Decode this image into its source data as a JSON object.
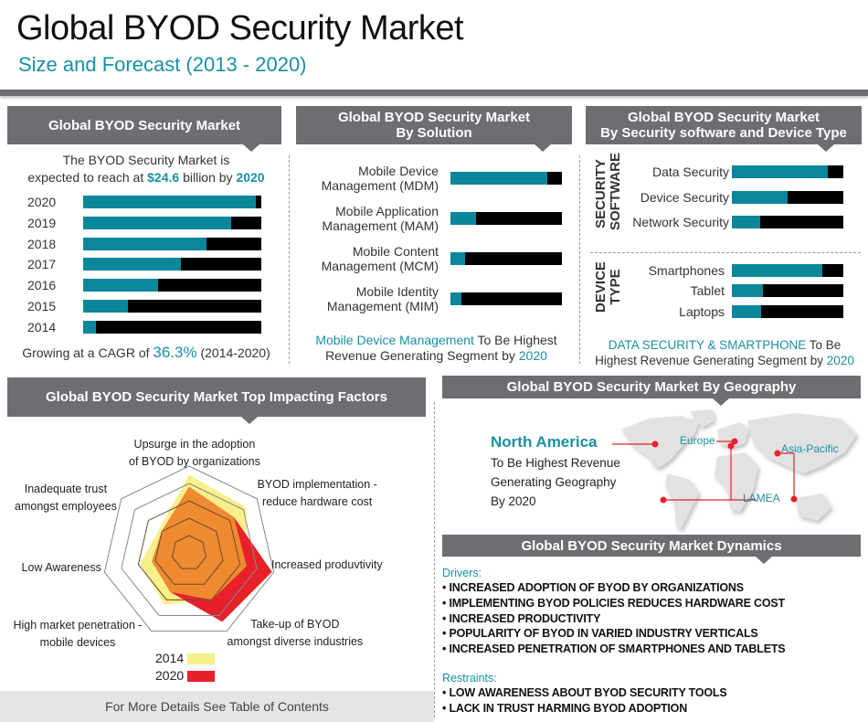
{
  "header": {
    "title": "Global BYOD Security Market",
    "subtitle": "Size and Forecast (2013 - 2020)"
  },
  "colors": {
    "teal": "#0b879c",
    "accent_text": "#1a8fa3",
    "header_bg": "#6d6e71",
    "series_2014": "#f7ef8a",
    "series_2020": "#e8202a",
    "overlap": "#f08a30"
  },
  "panel_market": {
    "title": "Global BYOD Security Market",
    "intro_line1": "The BYOD Security Market is",
    "intro_pre": "expected to reach at ",
    "intro_value": "$24.6",
    "intro_mid": " billion by ",
    "intro_year": "2020",
    "cagr_pre": "Growing at a CAGR of ",
    "cagr_value": "36.3%",
    "cagr_post": " (2014-2020)"
  },
  "panel_solution": {
    "title_line1": "Global BYOD Security Market",
    "title_line2": "By  Solution",
    "note_highlight": "Mobile Device Management",
    "note_mid": " To Be Highest",
    "note_line2": "Revenue Generating Segment by ",
    "note_year": "2020"
  },
  "panel_software": {
    "title_line1": "Global BYOD Security Market",
    "title_line2": "By Security software and Device Type",
    "group1_label_a": "SECURITY",
    "group1_label_b": "SOFTWARE",
    "group2_label_a": "DEVICE",
    "group2_label_b": "TYPE",
    "note_highlight": "DATA SECURITY  & SMARTPHONE",
    "note_mid": " To Be",
    "note_line2": "Highest Revenue Generating Segment by ",
    "note_year": "2020"
  },
  "panel_factors": {
    "title": "Global BYOD Security Market  Top Impacting Factors",
    "legend": [
      {
        "label": "2014"
      },
      {
        "label": "2020"
      }
    ]
  },
  "panel_geo": {
    "title": "Global BYOD Security Market By Geography",
    "highlight": "North America",
    "line1": "To Be Highest Revenue",
    "line2": "Generating Geography",
    "line3": "By 2020",
    "regions": [
      "Europe",
      "Asia-Pacific",
      "LAMEA"
    ]
  },
  "panel_dynamics": {
    "title": "Global BYOD Security Market Dynamics",
    "drivers_label": "Drivers:",
    "drivers": [
      "INCREASED ADOPTION OF BYOD BY ORGANIZATIONS",
      "IMPLEMENTING BYOD POLICIES REDUCES HARDWARE COST",
      "INCREASED PRODUCTIVITY",
      "POPULARITY OF BYOD IN VARIED INDUSTRY VERTICALS",
      "INCREASED PENETRATION OF SMARTPHONES AND TABLETS"
    ],
    "restraints_label": "Restraints:",
    "restraints": [
      "LOW AWARENESS ABOUT BYOD SECURITY TOOLS",
      "LACK IN TRUST HARMING BYOD ADOPTION"
    ]
  },
  "footer": {
    "text": "For More Details See Table of Contents"
  },
  "chart_data": [
    {
      "type": "bar",
      "title": "Global BYOD Security Market",
      "orientation": "horizontal",
      "categories": [
        "2020",
        "2019",
        "2018",
        "2017",
        "2016",
        "2015",
        "2014"
      ],
      "values": [
        0.97,
        0.83,
        0.69,
        0.55,
        0.42,
        0.25,
        0.07
      ],
      "value_unit": "fraction of 2020 market size (bar fill)",
      "xlim": [
        0,
        1
      ]
    },
    {
      "type": "bar",
      "title": "Global BYOD Security Market By Solution",
      "orientation": "horizontal",
      "categories": [
        "Mobile Device Management (MDM)",
        "Mobile Application Management (MAM)",
        "Mobile Content Management (MCM)",
        "Mobile Identity Management (MIM)"
      ],
      "values": [
        0.87,
        0.23,
        0.13,
        0.1
      ],
      "xlim": [
        0,
        1
      ]
    },
    {
      "type": "bar",
      "title": "By Security software",
      "orientation": "horizontal",
      "categories": [
        "Data Security",
        "Device Security",
        "Network Security"
      ],
      "values": [
        0.86,
        0.5,
        0.25
      ],
      "xlim": [
        0,
        1
      ]
    },
    {
      "type": "bar",
      "title": "By Device Type",
      "orientation": "horizontal",
      "categories": [
        "Smartphones",
        "Tablet",
        "Laptops"
      ],
      "values": [
        0.81,
        0.28,
        0.26
      ],
      "xlim": [
        0,
        1
      ]
    },
    {
      "type": "radar",
      "title": "Global BYOD Security Market  Top Impacting Factors",
      "axes": [
        "Upsurge in the adoption of BYOD by organizations",
        "BYOD implementation - reduce hardware cost",
        "Increased produvtivity",
        "Take-up of BYOD amongst diverse industries",
        "High market penetration - mobile devices",
        "Low Awareness",
        "Inadequate trust amongst employees"
      ],
      "axis_lines": [
        [
          "Upsurge in the adoption",
          "of BYOD by organizations"
        ],
        [
          "BYOD implementation -",
          "reduce hardware cost"
        ],
        [
          "Increased produvtivity"
        ],
        [
          "Take-up of BYOD",
          "amongst diverse industries"
        ],
        [
          "High market penetration -",
          "mobile devices"
        ],
        [
          "Low Awareness"
        ],
        [
          "Inadequate trust",
          "amongst employees"
        ]
      ],
      "levels": 5,
      "rmax": 5,
      "series": [
        {
          "name": "2014",
          "values": [
            4.5,
            4.2,
            3.4,
            3.0,
            3.3,
            2.9,
            2.2
          ]
        },
        {
          "name": "2020",
          "values": [
            3.8,
            3.3,
            4.9,
            4.4,
            2.5,
            2.2,
            2.0
          ]
        }
      ],
      "legend": "bottom-center"
    }
  ]
}
